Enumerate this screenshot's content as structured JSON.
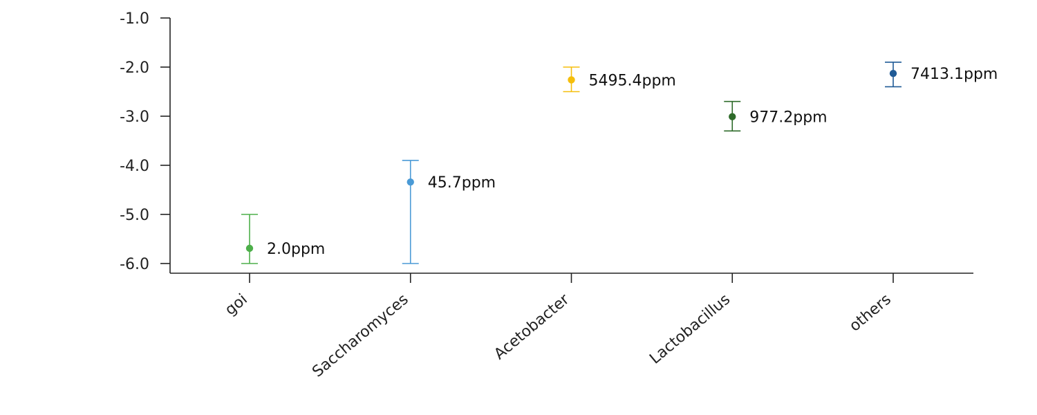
{
  "chart_data": {
    "type": "scatter",
    "title": "",
    "xlabel": "",
    "ylabel": "",
    "ylim": [
      -6.2,
      -1.0
    ],
    "yticks": [
      -1.0,
      -2.0,
      -3.0,
      -4.0,
      -5.0,
      -6.0
    ],
    "ytick_labels": [
      "-1.0",
      "-2.0",
      "-3.0",
      "-4.0",
      "-5.0",
      "-6.0"
    ],
    "grid": false,
    "categories": [
      "goi",
      "Saccharomyces",
      "Acetobacter",
      "Lactobacillus",
      "others"
    ],
    "points": [
      {
        "category": "goi",
        "value": -5.69,
        "err_low": -6.0,
        "err_high": -5.0,
        "label": "2.0ppm",
        "color": "#4daf4a"
      },
      {
        "category": "Saccharomyces",
        "value": -4.34,
        "err_low": -6.0,
        "err_high": -3.9,
        "label": "45.7ppm",
        "color": "#4a9ad6"
      },
      {
        "category": "Acetobacter",
        "value": -2.26,
        "err_low": -2.5,
        "err_high": -2.0,
        "label": "5495.4ppm",
        "color": "#f5be0b"
      },
      {
        "category": "Lactobacillus",
        "value": -3.01,
        "err_low": -3.3,
        "err_high": -2.7,
        "label": "977.2ppm",
        "color": "#2e6b2a"
      },
      {
        "category": "others",
        "value": -2.13,
        "err_low": -2.4,
        "err_high": -1.9,
        "label": "7413.1ppm",
        "color": "#1f5a96"
      }
    ]
  }
}
